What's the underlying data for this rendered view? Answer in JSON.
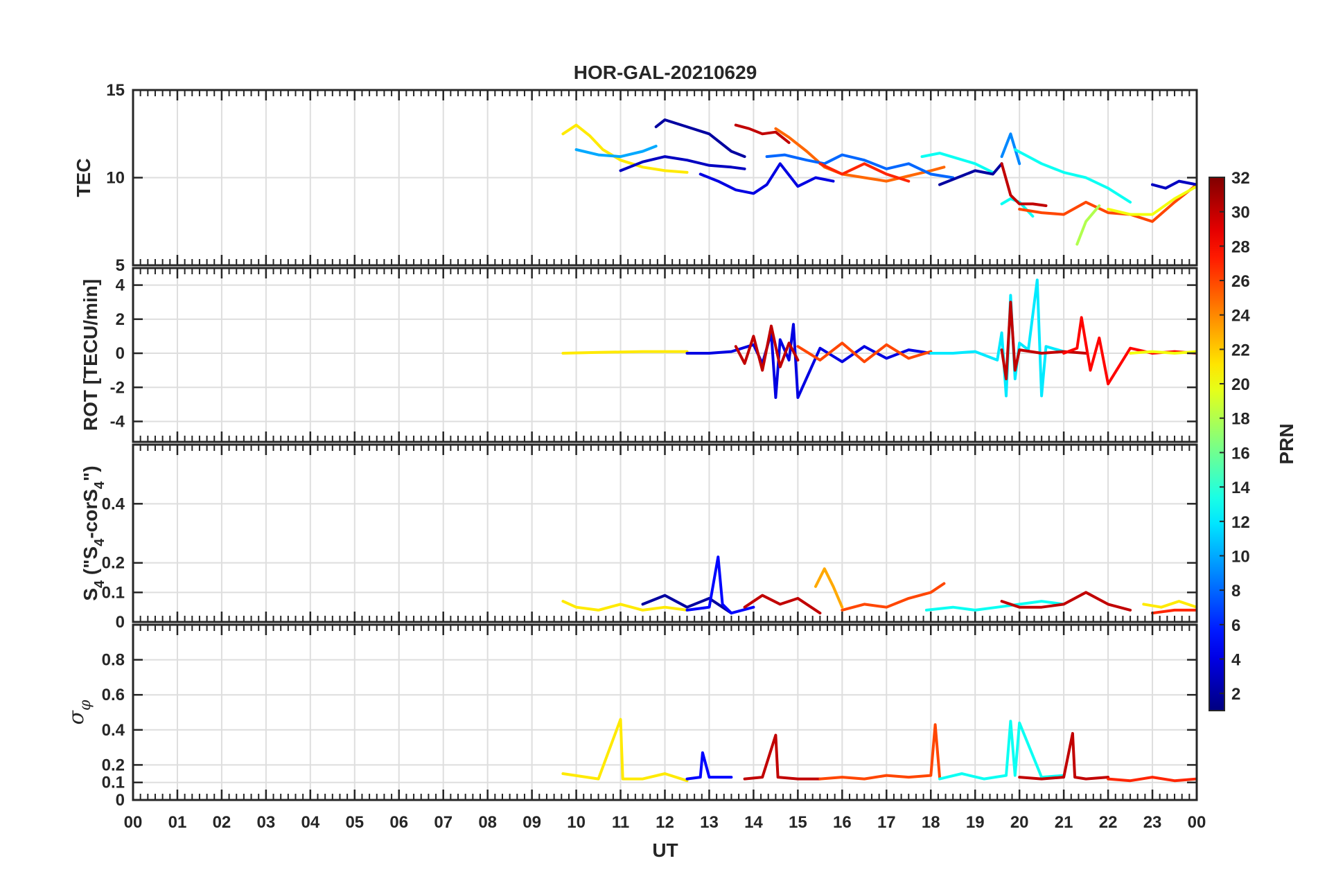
{
  "chart_data": {
    "type": "line",
    "title": "HOR-GAL-20210629",
    "xlabel": "UT",
    "x_ticks": [
      "00",
      "01",
      "02",
      "03",
      "04",
      "05",
      "06",
      "07",
      "08",
      "09",
      "10",
      "11",
      "12",
      "13",
      "14",
      "15",
      "16",
      "17",
      "18",
      "19",
      "20",
      "21",
      "22",
      "23",
      "00"
    ],
    "xlim": [
      0,
      24
    ],
    "grid": true,
    "colorbar": {
      "label": "PRN",
      "range": [
        1,
        32
      ],
      "ticks": [
        "2",
        "4",
        "6",
        "8",
        "10",
        "12",
        "14",
        "16",
        "18",
        "20",
        "22",
        "24",
        "26",
        "28",
        "30",
        "32"
      ],
      "colormap": "jet"
    },
    "panels": [
      {
        "id": "tec",
        "ylabel": "TEC",
        "ylim": [
          5,
          15
        ],
        "y_ticks": [
          "5",
          "10",
          "15"
        ],
        "y_tick_values": [
          5,
          10,
          15
        ],
        "series": [
          {
            "prn": 21,
            "x": [
              9.7,
              10.0,
              10.3,
              10.6,
              11.0,
              11.5,
              12.0,
              12.5
            ],
            "y": [
              12.5,
              13.0,
              12.4,
              11.6,
              11.0,
              10.6,
              10.4,
              10.3
            ]
          },
          {
            "prn": 10,
            "x": [
              10.0,
              10.5,
              11.0,
              11.5,
              11.8
            ],
            "y": [
              11.6,
              11.3,
              11.2,
              11.5,
              11.8
            ]
          },
          {
            "prn": 3,
            "x": [
              11.0,
              11.5,
              12.0,
              12.5,
              13.0,
              13.5,
              13.8
            ],
            "y": [
              10.4,
              10.9,
              11.2,
              11.0,
              10.7,
              10.6,
              10.5
            ]
          },
          {
            "prn": 2,
            "x": [
              11.8,
              12.0,
              12.5,
              13.0,
              13.5,
              13.8
            ],
            "y": [
              12.9,
              13.3,
              12.9,
              12.5,
              11.5,
              11.2
            ]
          },
          {
            "prn": 4,
            "x": [
              12.8,
              13.2,
              13.6,
              14.0,
              14.3,
              14.6,
              15.0,
              15.4,
              15.8
            ],
            "y": [
              10.2,
              9.8,
              9.3,
              9.1,
              9.6,
              10.8,
              9.5,
              10.0,
              9.8
            ]
          },
          {
            "prn": 30,
            "x": [
              13.6,
              13.9,
              14.2,
              14.5,
              14.8
            ],
            "y": [
              13.0,
              12.8,
              12.5,
              12.6,
              12.0
            ]
          },
          {
            "prn": 25,
            "x": [
              14.5,
              14.8,
              15.2,
              15.6,
              16.0,
              16.5,
              17.0,
              17.5,
              18.0,
              18.3
            ],
            "y": [
              12.8,
              12.3,
              11.5,
              10.6,
              10.2,
              10.0,
              9.8,
              10.1,
              10.4,
              10.6
            ]
          },
          {
            "prn": 8,
            "x": [
              14.3,
              14.7,
              15.2,
              15.6,
              16.0,
              16.5,
              17.0,
              17.5,
              18.0,
              18.5
            ],
            "y": [
              11.2,
              11.3,
              11.0,
              10.8,
              11.3,
              11.0,
              10.5,
              10.8,
              10.2,
              10.0
            ]
          },
          {
            "prn": 27,
            "x": [
              15.5,
              16.0,
              16.5,
              17.0,
              17.5
            ],
            "y": [
              10.8,
              10.2,
              10.8,
              10.2,
              9.8
            ]
          },
          {
            "prn": 13,
            "x": [
              17.8,
              18.2,
              18.6,
              19.0,
              19.4
            ],
            "y": [
              11.2,
              11.4,
              11.1,
              10.8,
              10.3
            ]
          },
          {
            "prn": 2,
            "x": [
              18.2,
              18.6,
              19.0,
              19.4,
              19.6
            ],
            "y": [
              9.6,
              10.0,
              10.4,
              10.2,
              10.8
            ]
          },
          {
            "prn": 9,
            "x": [
              19.6,
              19.8,
              20.0
            ],
            "y": [
              11.2,
              12.5,
              10.8
            ]
          },
          {
            "prn": 13,
            "x": [
              19.9,
              20.2,
              20.5,
              21.0,
              21.5,
              22.0,
              22.5
            ],
            "y": [
              11.6,
              11.2,
              10.8,
              10.3,
              10.0,
              9.4,
              8.6
            ]
          },
          {
            "prn": 13,
            "x": [
              19.6,
              19.8,
              20.0,
              20.3
            ],
            "y": [
              8.5,
              8.8,
              8.6,
              7.8
            ]
          },
          {
            "prn": 30,
            "x": [
              19.6,
              19.8,
              20.0,
              20.3,
              20.6
            ],
            "y": [
              10.8,
              9.0,
              8.5,
              8.5,
              8.4
            ]
          },
          {
            "prn": 26,
            "x": [
              20.0,
              20.5,
              21.0,
              21.5,
              22.0,
              22.5,
              23.0,
              23.5,
              24.0
            ],
            "y": [
              8.2,
              8.0,
              7.9,
              8.6,
              8.0,
              7.9,
              7.5,
              8.6,
              9.6
            ]
          },
          {
            "prn": 18,
            "x": [
              21.3,
              21.5,
              21.8
            ],
            "y": [
              6.2,
              7.5,
              8.4
            ]
          },
          {
            "prn": 20,
            "x": [
              22.0,
              22.5,
              23.0,
              23.5,
              24.0
            ],
            "y": [
              8.2,
              7.9,
              7.9,
              8.8,
              9.5
            ]
          },
          {
            "prn": 3,
            "x": [
              23.0,
              23.3,
              23.6,
              24.0
            ],
            "y": [
              9.6,
              9.4,
              9.8,
              9.6
            ]
          }
        ]
      },
      {
        "id": "rot",
        "ylabel": "ROT [TECU/min]",
        "ylim": [
          -5.2,
          5
        ],
        "y_ticks": [
          "-4",
          "-2",
          "0",
          "2",
          "4"
        ],
        "y_tick_values": [
          -4,
          -2,
          0,
          2,
          4
        ],
        "series": [
          {
            "prn": 21,
            "x": [
              9.7,
              10.5,
              11.5,
              12.5
            ],
            "y": [
              0.0,
              0.05,
              0.1,
              0.1
            ]
          },
          {
            "prn": 4,
            "x": [
              12.5,
              13.0,
              13.5,
              14.0,
              14.2,
              14.4,
              14.5,
              14.6,
              14.8,
              14.9,
              15.0,
              15.5,
              16.0,
              16.5,
              17.0,
              17.5,
              18.0
            ],
            "y": [
              0.0,
              0.0,
              0.1,
              0.5,
              -0.6,
              1.2,
              -2.6,
              0.8,
              -0.4,
              1.7,
              -2.6,
              0.3,
              -0.5,
              0.4,
              -0.3,
              0.2,
              0.0
            ]
          },
          {
            "prn": 30,
            "x": [
              13.6,
              13.8,
              14.0,
              14.2,
              14.4,
              14.6,
              14.8,
              15.0
            ],
            "y": [
              0.4,
              -0.6,
              1.0,
              -1.0,
              1.6,
              -0.8,
              0.6,
              -0.4
            ]
          },
          {
            "prn": 26,
            "x": [
              15.0,
              15.5,
              16.0,
              16.5,
              17.0,
              17.5,
              18.0
            ],
            "y": [
              0.4,
              -0.4,
              0.6,
              -0.5,
              0.5,
              -0.3,
              0.1
            ]
          },
          {
            "prn": 12,
            "x": [
              18.0,
              18.5,
              19.0,
              19.5,
              19.6,
              19.7,
              19.8,
              19.9,
              20.0,
              20.2,
              20.4,
              20.5,
              20.6,
              21.0
            ],
            "y": [
              0.0,
              0.0,
              0.1,
              -0.4,
              1.2,
              -2.5,
              3.4,
              -1.5,
              0.6,
              0.2,
              4.3,
              -2.5,
              0.4,
              0.1
            ]
          },
          {
            "prn": 30,
            "x": [
              19.6,
              19.7,
              19.8,
              19.9,
              20.0,
              20.5,
              21.0,
              21.5
            ],
            "y": [
              0.2,
              -1.5,
              3.0,
              -1.0,
              0.2,
              0.0,
              0.1,
              0.0
            ]
          },
          {
            "prn": 28,
            "x": [
              21.0,
              21.3,
              21.4,
              21.6,
              21.8,
              22.0,
              22.5,
              23.0,
              23.5,
              24.0
            ],
            "y": [
              0.0,
              0.3,
              2.1,
              -1.0,
              0.9,
              -1.8,
              0.3,
              0.0,
              0.1,
              0.0
            ]
          },
          {
            "prn": 20,
            "x": [
              22.5,
              23.0,
              23.5,
              24.0
            ],
            "y": [
              0.0,
              0.1,
              0.0,
              0.1
            ]
          }
        ]
      },
      {
        "id": "s4",
        "ylabel": "S4 (\"S4-corS4\")",
        "ylim": [
          0,
          0.6
        ],
        "y_ticks": [
          "0",
          "0.1",
          "0.2",
          "0.4"
        ],
        "y_tick_values": [
          0,
          0.1,
          0.2,
          0.4
        ],
        "series": [
          {
            "prn": 21,
            "x": [
              9.7,
              10.0,
              10.5,
              11.0,
              11.5,
              12.0,
              12.5
            ],
            "y": [
              0.07,
              0.05,
              0.04,
              0.06,
              0.04,
              0.05,
              0.04
            ]
          },
          {
            "prn": 2,
            "x": [
              11.5,
              12.0,
              12.5,
              13.0,
              13.5
            ],
            "y": [
              0.06,
              0.09,
              0.05,
              0.08,
              0.03
            ]
          },
          {
            "prn": 5,
            "x": [
              12.5,
              13.0,
              13.2,
              13.3,
              13.5,
              14.0
            ],
            "y": [
              0.04,
              0.05,
              0.22,
              0.06,
              0.03,
              0.05
            ]
          },
          {
            "prn": 30,
            "x": [
              13.8,
              14.2,
              14.6,
              15.0,
              15.5
            ],
            "y": [
              0.05,
              0.09,
              0.06,
              0.08,
              0.03
            ]
          },
          {
            "prn": 23,
            "x": [
              15.4,
              15.6,
              15.8,
              16.0
            ],
            "y": [
              0.12,
              0.18,
              0.12,
              0.05
            ]
          },
          {
            "prn": 26,
            "x": [
              16.0,
              16.5,
              17.0,
              17.5,
              18.0,
              18.3
            ],
            "y": [
              0.04,
              0.06,
              0.05,
              0.08,
              0.1,
              0.13
            ]
          },
          {
            "prn": 13,
            "x": [
              17.9,
              18.5,
              19.0,
              19.5,
              20.0,
              20.5,
              21.0
            ],
            "y": [
              0.04,
              0.05,
              0.04,
              0.05,
              0.06,
              0.07,
              0.06
            ]
          },
          {
            "prn": 30,
            "x": [
              19.6,
              20.0,
              20.5,
              21.0,
              21.5,
              22.0,
              22.5
            ],
            "y": [
              0.07,
              0.05,
              0.05,
              0.06,
              0.1,
              0.06,
              0.04
            ]
          },
          {
            "prn": 21,
            "x": [
              22.8,
              23.2,
              23.6,
              24.0
            ],
            "y": [
              0.06,
              0.05,
              0.07,
              0.05
            ]
          },
          {
            "prn": 27,
            "x": [
              23.0,
              23.5,
              24.0
            ],
            "y": [
              0.03,
              0.04,
              0.04
            ]
          }
        ]
      },
      {
        "id": "sigma",
        "ylabel": "σφ",
        "ylim": [
          0,
          1
        ],
        "y_ticks": [
          "0",
          "0.1",
          "0.2",
          "0.4",
          "0.6",
          "0.8"
        ],
        "y_tick_values": [
          0,
          0.1,
          0.2,
          0.4,
          0.6,
          0.8
        ],
        "series": [
          {
            "prn": 21,
            "x": [
              9.7,
              10.5,
              11.0,
              11.05,
              11.5,
              12.0,
              12.5
            ],
            "y": [
              0.15,
              0.12,
              0.46,
              0.12,
              0.12,
              0.15,
              0.11
            ]
          },
          {
            "prn": 5,
            "x": [
              12.5,
              12.8,
              12.85,
              13.0,
              13.5
            ],
            "y": [
              0.12,
              0.13,
              0.27,
              0.13,
              0.13
            ]
          },
          {
            "prn": 30,
            "x": [
              13.8,
              14.2,
              14.5,
              14.55,
              15.0,
              15.5
            ],
            "y": [
              0.12,
              0.13,
              0.37,
              0.13,
              0.12,
              0.12
            ]
          },
          {
            "prn": 26,
            "x": [
              15.5,
              16.0,
              16.5,
              17.0,
              17.5,
              18.0,
              18.1,
              18.2
            ],
            "y": [
              0.12,
              0.13,
              0.12,
              0.14,
              0.13,
              0.14,
              0.43,
              0.13
            ]
          },
          {
            "prn": 13,
            "x": [
              18.2,
              18.7,
              19.2,
              19.7,
              19.8,
              19.9,
              20.0,
              20.5,
              21.0
            ],
            "y": [
              0.12,
              0.15,
              0.12,
              0.14,
              0.45,
              0.14,
              0.44,
              0.13,
              0.14
            ]
          },
          {
            "prn": 30,
            "x": [
              20.0,
              20.5,
              21.0,
              21.2,
              21.25,
              21.5,
              22.0
            ],
            "y": [
              0.13,
              0.12,
              0.13,
              0.38,
              0.13,
              0.12,
              0.13
            ]
          },
          {
            "prn": 27,
            "x": [
              22.0,
              22.5,
              23.0,
              23.5,
              24.0
            ],
            "y": [
              0.12,
              0.11,
              0.13,
              0.11,
              0.12
            ]
          }
        ]
      }
    ]
  }
}
